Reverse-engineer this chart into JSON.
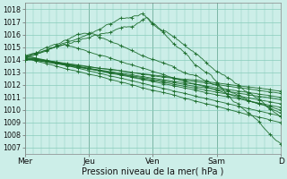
{
  "xlabel": "Pression niveau de la mer( hPa )",
  "ylim": [
    1006.5,
    1018.5
  ],
  "yticks": [
    1007,
    1008,
    1009,
    1010,
    1011,
    1012,
    1013,
    1014,
    1015,
    1016,
    1017,
    1018
  ],
  "day_labels": [
    "Mer",
    "Jeu",
    "Ven",
    "Sam",
    "D"
  ],
  "day_positions": [
    0,
    48,
    96,
    144,
    192
  ],
  "total_hours": 192,
  "bg_color": "#cceee8",
  "grid_color": "#88ccbb",
  "line_color": "#1a6b2a",
  "n_lines": 12
}
